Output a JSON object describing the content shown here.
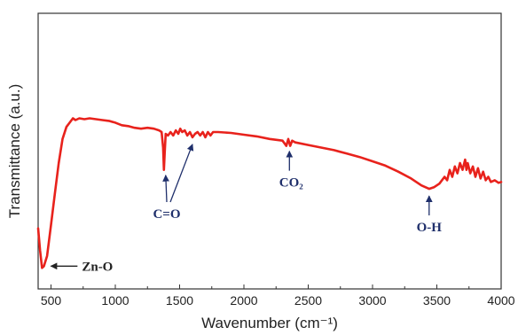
{
  "chart_data": {
    "type": "line",
    "xlabel": "Wavenumber (cm⁻¹)",
    "ylabel": "Transmittance (a.u.)",
    "xlim": [
      400,
      4000
    ],
    "ylim": [
      0,
      100
    ],
    "x_ticks": [
      "500",
      "1000",
      "1500",
      "2000",
      "2500",
      "3000",
      "3500",
      "4000"
    ],
    "y_ticks_labeled": false,
    "grid": false,
    "line_color": "#e8221c",
    "annotation_color": "#1f2f6b",
    "series": [
      {
        "name": "",
        "points": [
          [
            400,
            28
          ],
          [
            415,
            15
          ],
          [
            430,
            5
          ],
          [
            445,
            6
          ],
          [
            470,
            12
          ],
          [
            500,
            30
          ],
          [
            530,
            48
          ],
          [
            560,
            66
          ],
          [
            590,
            80
          ],
          [
            620,
            87
          ],
          [
            650,
            90
          ],
          [
            670,
            92
          ],
          [
            690,
            91
          ],
          [
            720,
            92
          ],
          [
            760,
            91.5
          ],
          [
            800,
            92
          ],
          [
            850,
            91.5
          ],
          [
            900,
            91
          ],
          [
            950,
            90.5
          ],
          [
            1000,
            89.5
          ],
          [
            1050,
            88
          ],
          [
            1100,
            87.5
          ],
          [
            1150,
            86.5
          ],
          [
            1200,
            86
          ],
          [
            1250,
            86.5
          ],
          [
            1300,
            86
          ],
          [
            1340,
            85
          ],
          [
            1360,
            84
          ],
          [
            1372,
            75
          ],
          [
            1378,
            62
          ],
          [
            1384,
            72
          ],
          [
            1392,
            83
          ],
          [
            1410,
            82
          ],
          [
            1430,
            84
          ],
          [
            1450,
            82
          ],
          [
            1470,
            85
          ],
          [
            1490,
            83
          ],
          [
            1505,
            86
          ],
          [
            1520,
            84
          ],
          [
            1540,
            85
          ],
          [
            1560,
            82
          ],
          [
            1580,
            84
          ],
          [
            1600,
            81
          ],
          [
            1620,
            83
          ],
          [
            1640,
            84
          ],
          [
            1660,
            82
          ],
          [
            1680,
            84
          ],
          [
            1700,
            81
          ],
          [
            1720,
            84
          ],
          [
            1740,
            82
          ],
          [
            1760,
            84
          ],
          [
            1800,
            84
          ],
          [
            1900,
            83.5
          ],
          [
            2000,
            82.5
          ],
          [
            2100,
            81.5
          ],
          [
            2200,
            80
          ],
          [
            2300,
            79
          ],
          [
            2330,
            76
          ],
          [
            2345,
            80
          ],
          [
            2360,
            76
          ],
          [
            2375,
            79
          ],
          [
            2400,
            78
          ],
          [
            2500,
            76.5
          ],
          [
            2600,
            75
          ],
          [
            2700,
            73.5
          ],
          [
            2800,
            71.5
          ],
          [
            2900,
            69.5
          ],
          [
            3000,
            67
          ],
          [
            3100,
            64.5
          ],
          [
            3200,
            61
          ],
          [
            3300,
            57
          ],
          [
            3380,
            53
          ],
          [
            3440,
            51
          ],
          [
            3480,
            52
          ],
          [
            3520,
            54
          ],
          [
            3560,
            58
          ],
          [
            3580,
            56
          ],
          [
            3600,
            62
          ],
          [
            3620,
            58
          ],
          [
            3640,
            64
          ],
          [
            3660,
            60
          ],
          [
            3680,
            66
          ],
          [
            3700,
            62
          ],
          [
            3720,
            68
          ],
          [
            3730,
            62
          ],
          [
            3740,
            66
          ],
          [
            3760,
            60
          ],
          [
            3780,
            64
          ],
          [
            3800,
            58
          ],
          [
            3820,
            63
          ],
          [
            3840,
            57
          ],
          [
            3860,
            61
          ],
          [
            3880,
            56
          ],
          [
            3900,
            58
          ],
          [
            3920,
            55
          ],
          [
            3950,
            56
          ],
          [
            3980,
            54.5
          ],
          [
            4000,
            55
          ]
        ]
      }
    ],
    "annotations": [
      {
        "label": "Zn-O",
        "x": 430,
        "y": 5
      },
      {
        "label": "C=O",
        "x": 1378,
        "y": 62,
        "x2": 1600,
        "y2": 80
      },
      {
        "label": "CO₂",
        "x": 2340,
        "y": 77
      },
      {
        "label": "O-H",
        "x": 3440,
        "y": 51
      }
    ]
  }
}
